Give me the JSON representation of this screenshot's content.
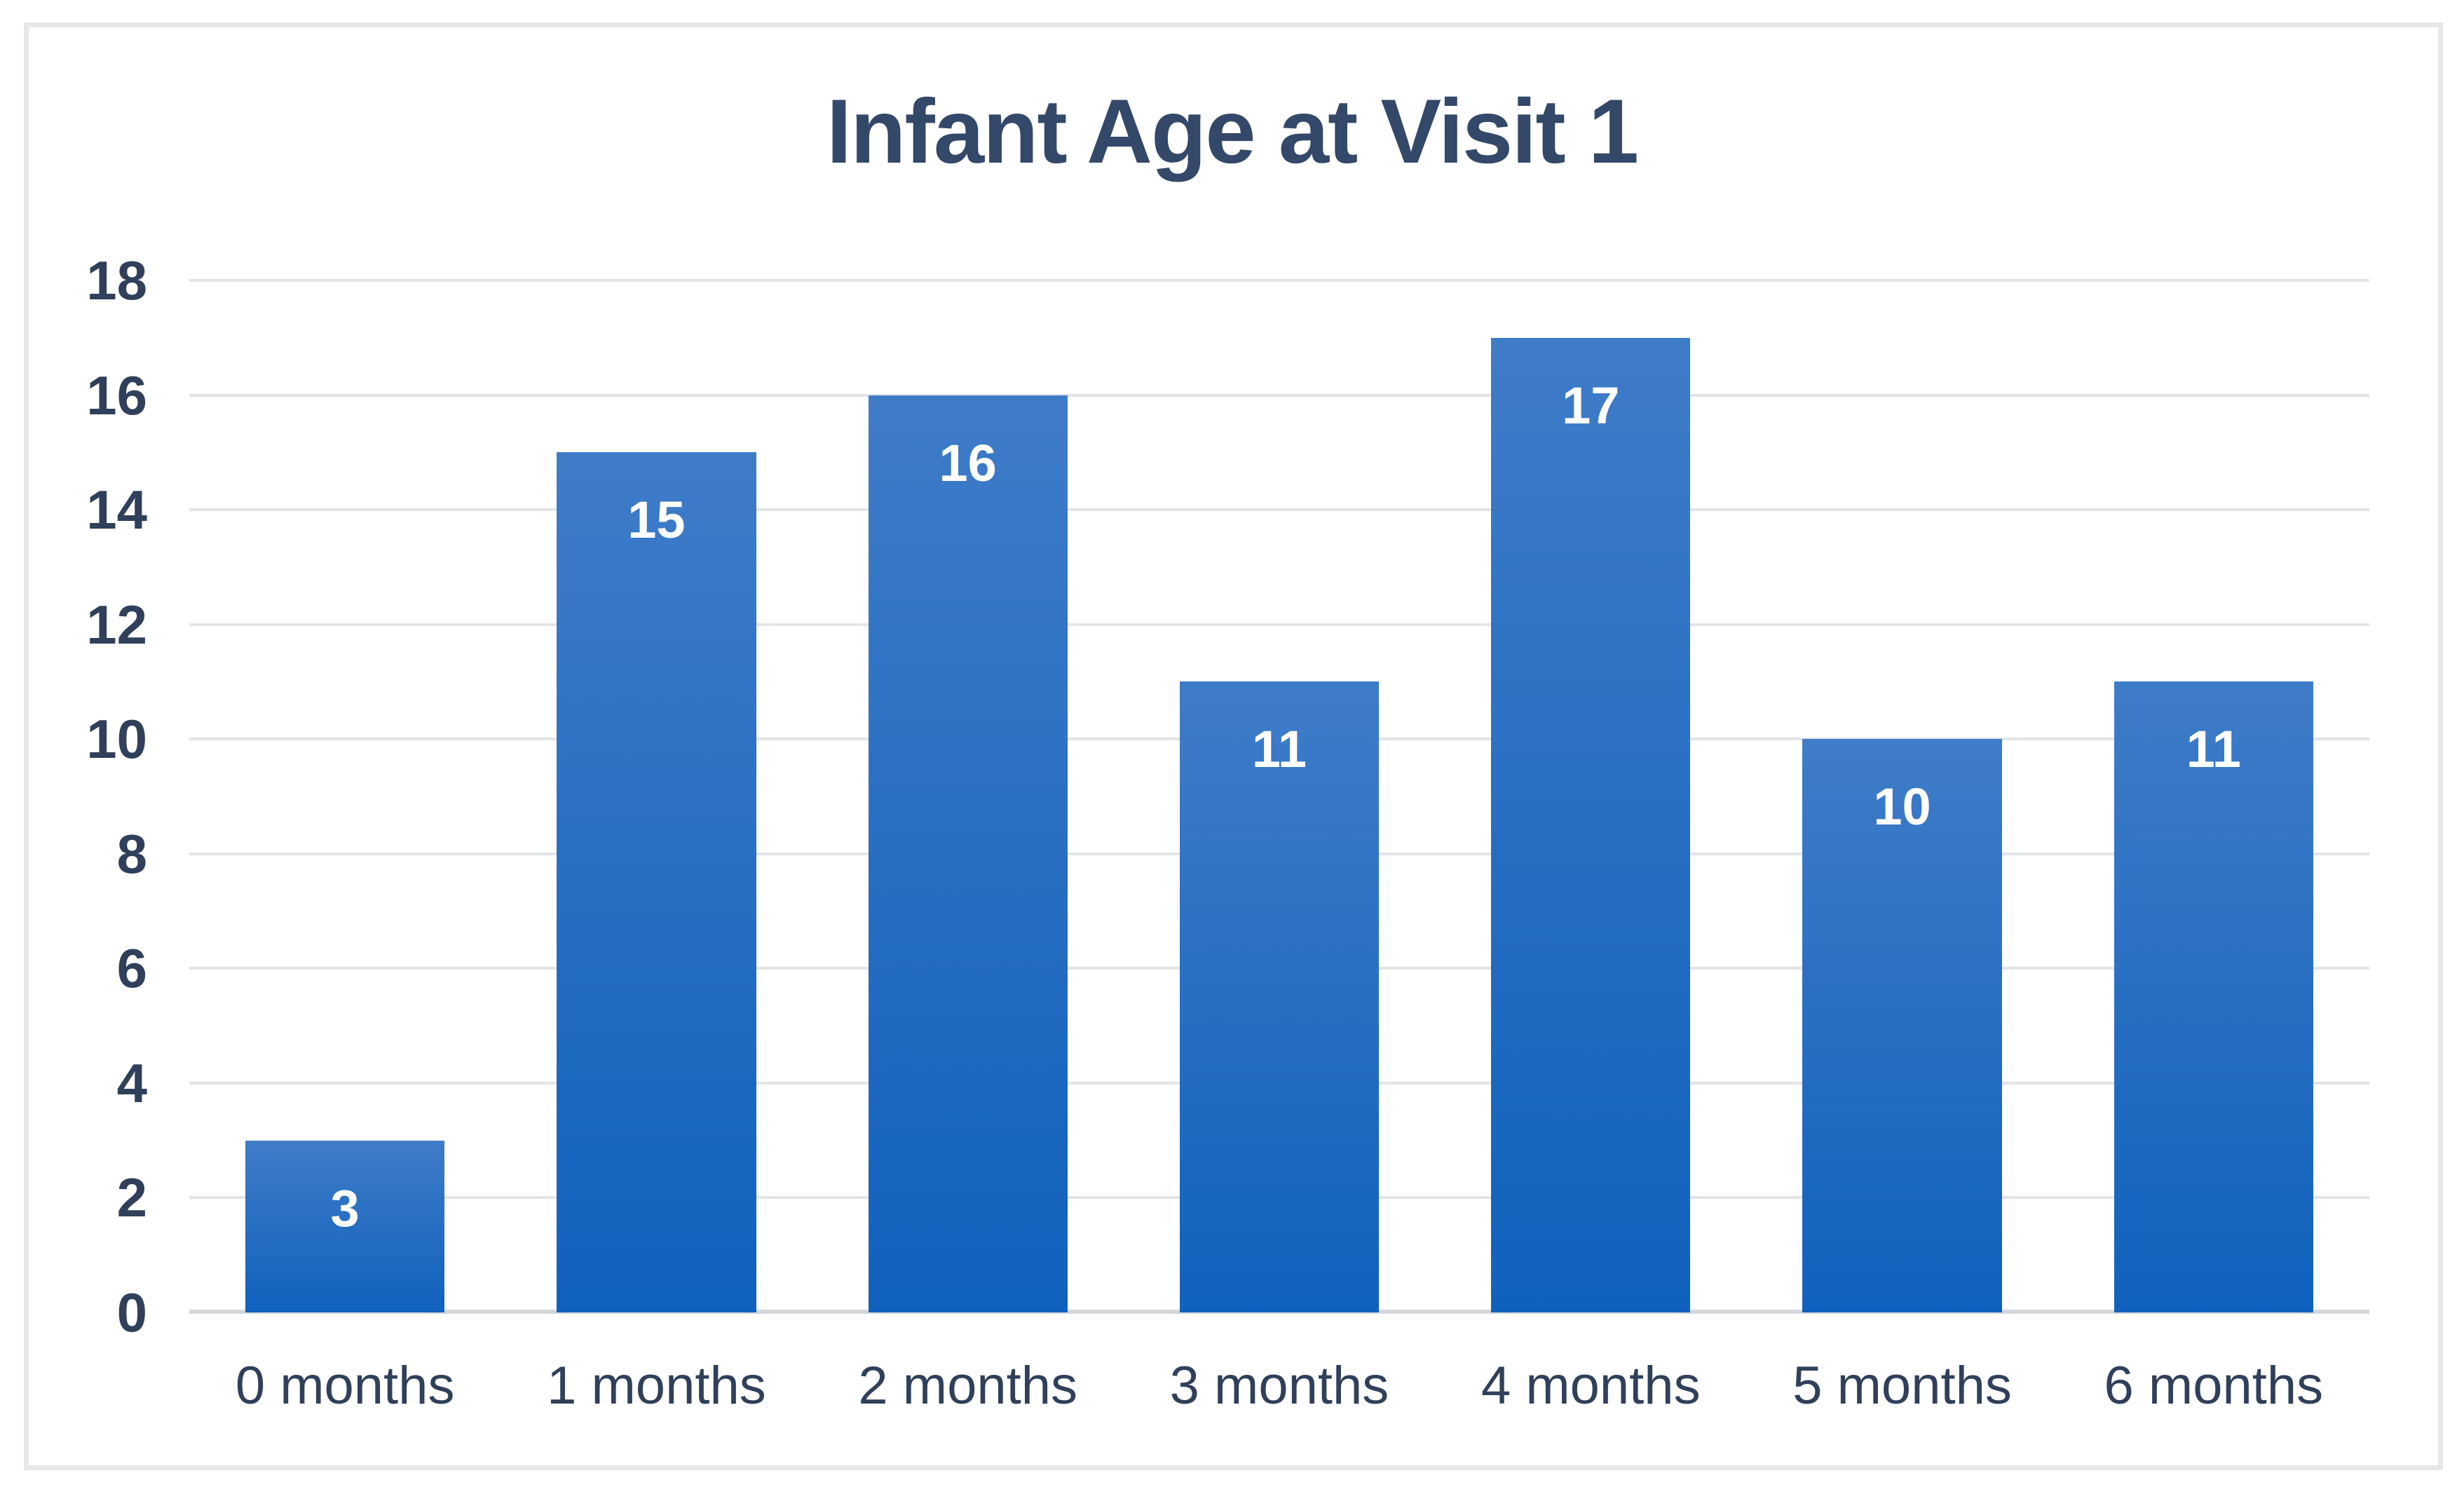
{
  "chart_data": {
    "type": "bar",
    "title": "Infant Age at Visit 1",
    "categories": [
      "0 months",
      "1 months",
      "2 months",
      "3 months",
      "4 months",
      "5 months",
      "6 months"
    ],
    "values": [
      3,
      15,
      16,
      11,
      17,
      10,
      11
    ],
    "xlabel": "",
    "ylabel": "",
    "ylim": [
      0,
      18
    ],
    "yticks": [
      0,
      2,
      4,
      6,
      8,
      10,
      12,
      14,
      16,
      18
    ],
    "grid": "horizontal",
    "legend": "none",
    "data_labels": "inside-end"
  },
  "colors": {
    "background": "#FFFFFF",
    "frame_border": "#E7E7E7",
    "title_text": "#344869",
    "axis_text": "#30405A",
    "gridline": "#E3E4E8",
    "baseline": "#D4D7DC",
    "bar_gradient_top": "#3F7CC8",
    "bar_gradient_bottom": "#1061BD",
    "data_label_text": "#FFFFFF"
  }
}
